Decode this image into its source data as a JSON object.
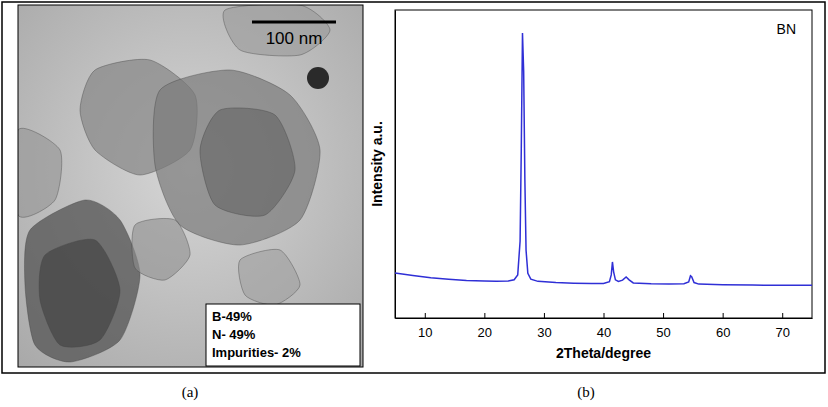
{
  "image_panel": {
    "label": "(a)",
    "scale_bar": "100 nm",
    "composition": [
      "B-49%",
      "N- 49%",
      "Impurities- 2%"
    ]
  },
  "chart_data": {
    "type": "line",
    "panel_label": "(b)",
    "x_label": "2Theta/degree",
    "y_label": "Intensity a.u.",
    "x": [
      5,
      8,
      11,
      14,
      17,
      20,
      22,
      24,
      25,
      25.6,
      26,
      26.2,
      26.4,
      26.6,
      26.8,
      27.0,
      27.3,
      27.8,
      29,
      32,
      35,
      38,
      40,
      41.0,
      41.3,
      41.5,
      41.7,
      42.0,
      42.5,
      43.2,
      43.8,
      44.3,
      45,
      48,
      51,
      53.5,
      54.3,
      54.6,
      54.8,
      55.2,
      56,
      60,
      65,
      70,
      75
    ],
    "series": [
      {
        "name": "BN",
        "color": "#2f2fd6",
        "values": [
          14.6,
          13.8,
          13.1,
          12.6,
          12.2,
          12.0,
          11.9,
          12.0,
          12.4,
          14,
          25,
          55,
          92.5,
          80,
          45,
          22,
          14.5,
          12.6,
          11.9,
          11.5,
          11.3,
          11.2,
          11.2,
          11.8,
          14,
          18.2,
          15,
          12.4,
          11.9,
          12.3,
          13.3,
          12.4,
          11.4,
          11.1,
          11.0,
          11.1,
          11.7,
          13.7,
          13.4,
          11.5,
          11.0,
          10.8,
          10.7,
          10.6,
          10.6
        ]
      }
    ],
    "xlim": [
      5,
      75
    ],
    "xticks": [
      10,
      20,
      30,
      40,
      50,
      60,
      70
    ],
    "ylim": [
      0,
      100
    ],
    "yticks": [],
    "tick_labels": "x",
    "legend": "upper right",
    "grid": false
  }
}
